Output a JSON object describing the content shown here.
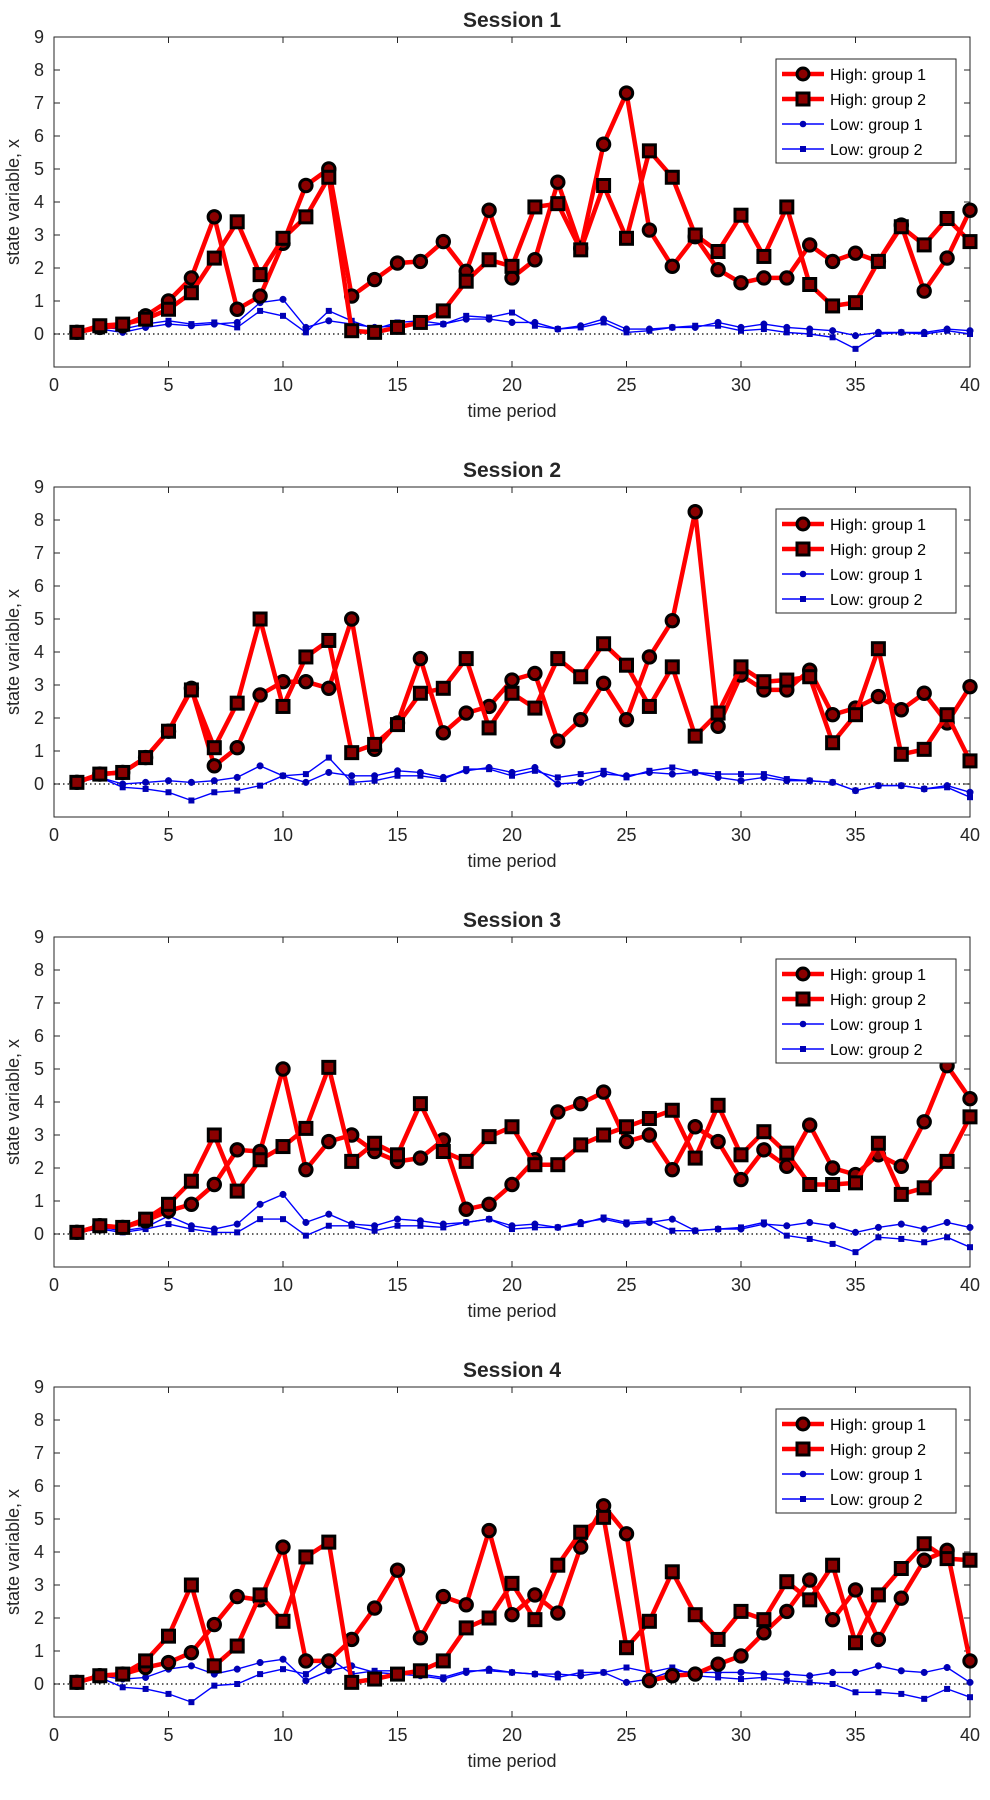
{
  "chart_data": [
    {
      "type": "line",
      "title": "Session 1",
      "xlabel": "time period",
      "ylabel": "state variable, x",
      "xlim": [
        0,
        40
      ],
      "ylim": [
        -1,
        9
      ],
      "xticks": [
        "0",
        "5",
        "10",
        "15",
        "20",
        "25",
        "30",
        "35",
        "40"
      ],
      "yticks": [
        "0",
        "1",
        "2",
        "3",
        "4",
        "5",
        "6",
        "7",
        "8",
        "9"
      ],
      "reference_line": {
        "y": 0,
        "style": "dotted"
      },
      "legend_position": "top-right",
      "x": [
        1,
        2,
        3,
        4,
        5,
        6,
        7,
        8,
        9,
        10,
        11,
        12,
        13,
        14,
        15,
        16,
        17,
        18,
        19,
        20,
        21,
        22,
        23,
        24,
        25,
        26,
        27,
        28,
        29,
        30,
        31,
        32,
        33,
        34,
        35,
        36,
        37,
        38,
        39,
        40
      ],
      "series": [
        {
          "name": "High: group 1",
          "color": "#ff0000",
          "marker": "circle",
          "values": [
            0.05,
            0.2,
            0.25,
            0.55,
            1.0,
            1.7,
            3.55,
            0.75,
            1.15,
            2.75,
            4.5,
            5.0,
            1.15,
            1.65,
            2.15,
            2.2,
            2.8,
            1.9,
            3.75,
            1.7,
            2.25,
            4.6,
            2.6,
            5.75,
            7.3,
            3.15,
            2.05,
            2.95,
            1.95,
            1.55,
            1.7,
            1.7,
            2.7,
            2.2,
            2.45,
            2.2,
            3.3,
            1.3,
            2.3,
            3.75
          ]
        },
        {
          "name": "High: group 2",
          "color": "#ff0000",
          "marker": "square",
          "values": [
            0.05,
            0.25,
            0.3,
            0.45,
            0.75,
            1.25,
            2.3,
            3.4,
            1.8,
            2.9,
            3.55,
            4.75,
            0.1,
            0.05,
            0.2,
            0.35,
            0.7,
            1.6,
            2.25,
            2.05,
            3.85,
            3.95,
            2.55,
            4.5,
            2.9,
            5.55,
            4.75,
            3.0,
            2.5,
            3.6,
            2.35,
            3.85,
            1.5,
            0.85,
            0.95,
            2.2,
            3.25,
            2.7,
            3.5,
            2.8
          ]
        },
        {
          "name": "Low: group 1",
          "color": "#0000ff",
          "marker": "circle",
          "values": [
            0.05,
            0.15,
            0.05,
            0.2,
            0.3,
            0.25,
            0.3,
            0.35,
            0.95,
            1.05,
            0.2,
            0.4,
            0.3,
            0.2,
            0.25,
            0.25,
            0.3,
            0.45,
            0.45,
            0.35,
            0.35,
            0.15,
            0.25,
            0.45,
            0.15,
            0.15,
            0.2,
            0.2,
            0.35,
            0.2,
            0.3,
            0.2,
            0.15,
            0.1,
            -0.05,
            0.05,
            0.05,
            0.05,
            0.15,
            0.1
          ]
        },
        {
          "name": "Low: group 2",
          "color": "#0000ff",
          "marker": "square",
          "values": [
            0.05,
            0.2,
            0.15,
            0.3,
            0.4,
            0.3,
            0.35,
            0.2,
            0.7,
            0.55,
            0.05,
            0.7,
            0.4,
            0.15,
            0.35,
            0.4,
            0.3,
            0.55,
            0.5,
            0.65,
            0.25,
            0.15,
            0.2,
            0.35,
            0.05,
            0.1,
            0.2,
            0.25,
            0.25,
            0.1,
            0.15,
            0.05,
            0.0,
            -0.1,
            -0.45,
            0.0,
            0.05,
            0.0,
            0.1,
            0.0
          ]
        }
      ]
    },
    {
      "type": "line",
      "title": "Session 2",
      "xlabel": "time period",
      "ylabel": "state variable, x",
      "xlim": [
        0,
        40
      ],
      "ylim": [
        -1,
        9
      ],
      "xticks": [
        "0",
        "5",
        "10",
        "15",
        "20",
        "25",
        "30",
        "35",
        "40"
      ],
      "yticks": [
        "0",
        "1",
        "2",
        "3",
        "4",
        "5",
        "6",
        "7",
        "8",
        "9"
      ],
      "reference_line": {
        "y": 0,
        "style": "dotted"
      },
      "legend_position": "top-right",
      "x": [
        1,
        2,
        3,
        4,
        5,
        6,
        7,
        8,
        9,
        10,
        11,
        12,
        13,
        14,
        15,
        16,
        17,
        18,
        19,
        20,
        21,
        22,
        23,
        24,
        25,
        26,
        27,
        28,
        29,
        30,
        31,
        32,
        33,
        34,
        35,
        36,
        37,
        38,
        39,
        40
      ],
      "series": [
        {
          "name": "High: group 1",
          "color": "#ff0000",
          "marker": "circle",
          "values": [
            0.05,
            0.3,
            0.35,
            0.8,
            1.6,
            2.9,
            0.55,
            1.1,
            2.7,
            3.1,
            3.1,
            2.9,
            5.0,
            1.05,
            1.85,
            3.8,
            1.55,
            2.15,
            2.35,
            3.15,
            3.35,
            1.3,
            1.95,
            3.05,
            1.95,
            3.85,
            4.95,
            8.25,
            1.75,
            3.3,
            2.85,
            2.85,
            3.45,
            2.1,
            2.3,
            2.65,
            2.25,
            2.75,
            1.85,
            2.95
          ]
        },
        {
          "name": "High: group 2",
          "color": "#ff0000",
          "marker": "square",
          "values": [
            0.05,
            0.3,
            0.35,
            0.8,
            1.6,
            2.85,
            1.1,
            2.45,
            5.0,
            2.35,
            3.85,
            4.35,
            0.95,
            1.2,
            1.8,
            2.75,
            2.9,
            3.8,
            1.7,
            2.75,
            2.3,
            3.8,
            3.25,
            4.25,
            3.6,
            2.35,
            3.55,
            1.45,
            2.15,
            3.55,
            3.1,
            3.15,
            3.25,
            1.25,
            2.1,
            4.1,
            0.9,
            1.05,
            2.1,
            0.7
          ]
        },
        {
          "name": "Low: group 1",
          "color": "#0000ff",
          "marker": "circle",
          "values": [
            0.05,
            0.2,
            0.0,
            0.05,
            0.1,
            0.05,
            0.1,
            0.2,
            0.55,
            0.25,
            0.05,
            0.35,
            0.25,
            0.25,
            0.4,
            0.35,
            0.2,
            0.4,
            0.5,
            0.35,
            0.5,
            0.0,
            0.05,
            0.3,
            0.25,
            0.35,
            0.3,
            0.35,
            0.2,
            0.1,
            0.2,
            0.1,
            0.1,
            0.05,
            -0.2,
            -0.05,
            -0.05,
            -0.15,
            -0.05,
            -0.25
          ]
        },
        {
          "name": "Low: group 2",
          "color": "#0000ff",
          "marker": "square",
          "values": [
            0.05,
            0.2,
            -0.1,
            -0.15,
            -0.25,
            -0.5,
            -0.25,
            -0.2,
            -0.05,
            0.25,
            0.3,
            0.8,
            0.05,
            0.1,
            0.25,
            0.25,
            0.15,
            0.45,
            0.45,
            0.25,
            0.4,
            0.2,
            0.3,
            0.4,
            0.2,
            0.4,
            0.5,
            0.35,
            0.3,
            0.3,
            0.3,
            0.15,
            0.1,
            0.05,
            -0.2,
            -0.05,
            -0.05,
            -0.15,
            -0.1,
            -0.4
          ]
        }
      ]
    },
    {
      "type": "line",
      "title": "Session 3",
      "xlabel": "time period",
      "ylabel": "state variable, x",
      "xlim": [
        0,
        40
      ],
      "ylim": [
        -1,
        9
      ],
      "xticks": [
        "0",
        "5",
        "10",
        "15",
        "20",
        "25",
        "30",
        "35",
        "40"
      ],
      "yticks": [
        "0",
        "1",
        "2",
        "3",
        "4",
        "5",
        "6",
        "7",
        "8",
        "9"
      ],
      "reference_line": {
        "y": 0,
        "style": "dotted"
      },
      "legend_position": "top-right",
      "x": [
        1,
        2,
        3,
        4,
        5,
        6,
        7,
        8,
        9,
        10,
        11,
        12,
        13,
        14,
        15,
        16,
        17,
        18,
        19,
        20,
        21,
        22,
        23,
        24,
        25,
        26,
        27,
        28,
        29,
        30,
        31,
        32,
        33,
        34,
        35,
        36,
        37,
        38,
        39,
        40
      ],
      "series": [
        {
          "name": "High: group 1",
          "color": "#ff0000",
          "marker": "circle",
          "values": [
            0.05,
            0.25,
            0.2,
            0.4,
            0.7,
            0.9,
            1.5,
            2.55,
            2.5,
            5.0,
            1.95,
            2.8,
            3.0,
            2.5,
            2.2,
            2.3,
            2.85,
            0.75,
            0.9,
            1.5,
            2.25,
            3.7,
            3.95,
            4.3,
            2.8,
            3.0,
            1.95,
            3.25,
            2.8,
            1.65,
            2.55,
            2.05,
            3.3,
            2.0,
            1.8,
            2.4,
            2.05,
            3.4,
            5.1,
            4.1
          ]
        },
        {
          "name": "High: group 2",
          "color": "#ff0000",
          "marker": "square",
          "values": [
            0.05,
            0.25,
            0.2,
            0.45,
            0.9,
            1.6,
            3.0,
            1.3,
            2.25,
            2.65,
            3.2,
            5.05,
            2.2,
            2.75,
            2.4,
            3.95,
            2.5,
            2.2,
            2.95,
            3.25,
            2.1,
            2.1,
            2.7,
            3.0,
            3.25,
            3.5,
            3.75,
            2.3,
            3.9,
            2.4,
            3.1,
            2.45,
            1.5,
            1.5,
            1.55,
            2.75,
            1.2,
            1.4,
            2.2,
            3.55
          ]
        },
        {
          "name": "Low: group 1",
          "color": "#0000ff",
          "marker": "circle",
          "values": [
            0.05,
            0.2,
            0.1,
            0.2,
            0.55,
            0.25,
            0.15,
            0.3,
            0.9,
            1.2,
            0.35,
            0.6,
            0.3,
            0.25,
            0.45,
            0.4,
            0.3,
            0.35,
            0.45,
            0.25,
            0.3,
            0.2,
            0.35,
            0.45,
            0.3,
            0.35,
            0.45,
            0.1,
            0.15,
            0.15,
            0.3,
            0.25,
            0.35,
            0.25,
            0.05,
            0.2,
            0.3,
            0.15,
            0.35,
            0.2
          ]
        },
        {
          "name": "Low: group 2",
          "color": "#0000ff",
          "marker": "square",
          "values": [
            0.05,
            0.15,
            0.05,
            0.15,
            0.3,
            0.15,
            0.05,
            0.05,
            0.45,
            0.45,
            -0.05,
            0.25,
            0.25,
            0.1,
            0.25,
            0.25,
            0.2,
            0.35,
            0.45,
            0.15,
            0.2,
            0.2,
            0.3,
            0.5,
            0.35,
            0.4,
            0.1,
            0.1,
            0.15,
            0.2,
            0.35,
            -0.05,
            -0.15,
            -0.3,
            -0.55,
            -0.1,
            -0.15,
            -0.25,
            -0.1,
            -0.4
          ]
        }
      ]
    },
    {
      "type": "line",
      "title": "Session 4",
      "xlabel": "time period",
      "ylabel": "state variable, x",
      "xlim": [
        0,
        40
      ],
      "ylim": [
        -1,
        9
      ],
      "xticks": [
        "0",
        "5",
        "10",
        "15",
        "20",
        "25",
        "30",
        "35",
        "40"
      ],
      "yticks": [
        "0",
        "1",
        "2",
        "3",
        "4",
        "5",
        "6",
        "7",
        "8",
        "9"
      ],
      "reference_line": {
        "y": 0,
        "style": "dotted"
      },
      "legend_position": "top-right",
      "x": [
        1,
        2,
        3,
        4,
        5,
        6,
        7,
        8,
        9,
        10,
        11,
        12,
        13,
        14,
        15,
        16,
        17,
        18,
        19,
        20,
        21,
        22,
        23,
        24,
        25,
        26,
        27,
        28,
        29,
        30,
        31,
        32,
        33,
        34,
        35,
        36,
        37,
        38,
        39,
        40
      ],
      "series": [
        {
          "name": "High: group 1",
          "color": "#ff0000",
          "marker": "circle",
          "values": [
            0.05,
            0.25,
            0.3,
            0.5,
            0.65,
            0.95,
            1.8,
            2.65,
            2.55,
            4.15,
            0.7,
            0.7,
            1.35,
            2.3,
            3.45,
            1.4,
            2.65,
            2.4,
            4.65,
            2.1,
            2.7,
            2.15,
            4.15,
            5.4,
            4.55,
            0.1,
            0.25,
            0.3,
            0.6,
            0.85,
            1.55,
            2.2,
            3.15,
            1.95,
            2.85,
            1.35,
            2.6,
            3.75,
            4.05,
            0.7
          ]
        },
        {
          "name": "High: group 2",
          "color": "#ff0000",
          "marker": "square",
          "values": [
            0.05,
            0.25,
            0.3,
            0.7,
            1.45,
            3.0,
            0.55,
            1.15,
            2.7,
            1.9,
            3.85,
            4.3,
            0.05,
            0.15,
            0.3,
            0.4,
            0.7,
            1.7,
            2.0,
            3.05,
            1.95,
            3.6,
            4.6,
            5.05,
            1.1,
            1.9,
            3.4,
            2.1,
            1.35,
            2.2,
            1.95,
            3.1,
            2.55,
            3.6,
            1.25,
            2.7,
            3.5,
            4.25,
            3.8,
            3.75
          ]
        },
        {
          "name": "Low: group 1",
          "color": "#0000ff",
          "marker": "circle",
          "values": [
            0.05,
            0.25,
            0.15,
            0.2,
            0.45,
            0.55,
            0.3,
            0.45,
            0.65,
            0.75,
            0.1,
            0.4,
            0.55,
            0.35,
            0.3,
            0.25,
            0.15,
            0.35,
            0.45,
            0.35,
            0.3,
            0.3,
            0.25,
            0.35,
            0.05,
            0.15,
            0.4,
            0.35,
            0.35,
            0.35,
            0.3,
            0.3,
            0.25,
            0.35,
            0.35,
            0.55,
            0.4,
            0.35,
            0.5,
            0.05
          ]
        },
        {
          "name": "Low: group 2",
          "color": "#0000ff",
          "marker": "square",
          "values": [
            0.05,
            0.2,
            -0.1,
            -0.15,
            -0.3,
            -0.55,
            -0.05,
            0.0,
            0.3,
            0.45,
            0.3,
            0.8,
            0.3,
            0.4,
            0.4,
            0.3,
            0.2,
            0.4,
            0.4,
            0.35,
            0.3,
            0.2,
            0.35,
            0.35,
            0.5,
            0.35,
            0.5,
            0.25,
            0.2,
            0.15,
            0.2,
            0.1,
            0.05,
            0.0,
            -0.25,
            -0.25,
            -0.3,
            -0.45,
            -0.15,
            -0.4
          ]
        }
      ]
    }
  ]
}
